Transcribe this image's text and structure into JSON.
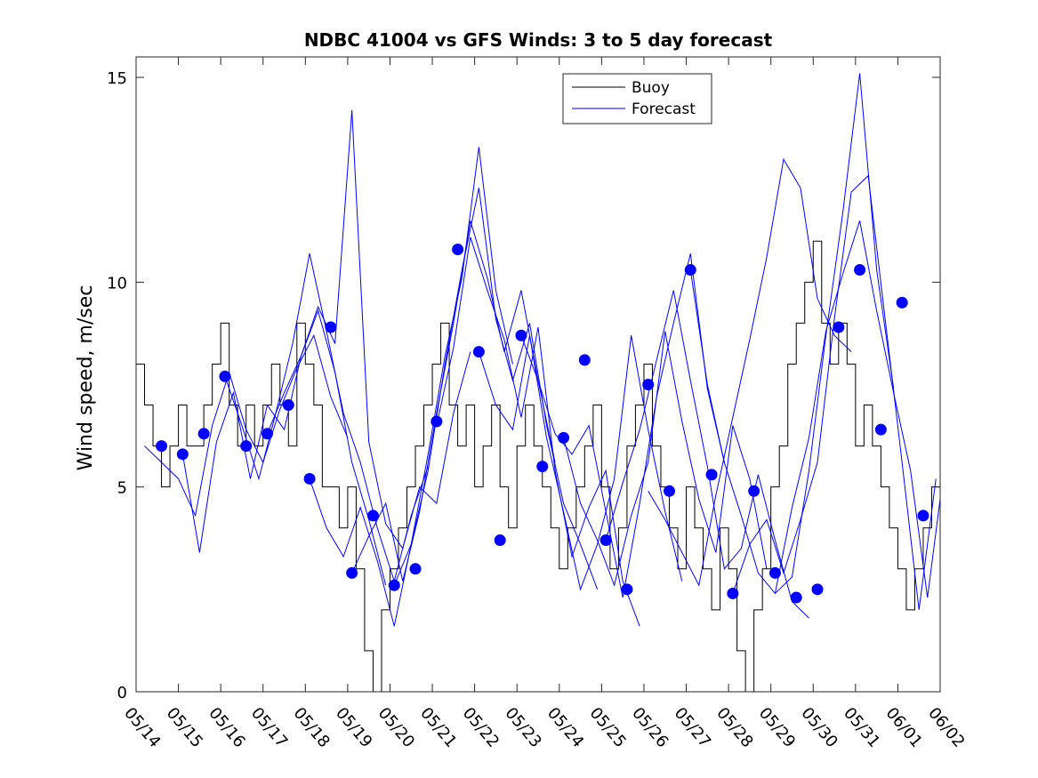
{
  "chart_data": {
    "type": "line",
    "title": "NDBC 41004 vs GFS Winds: 3 to 5 day forecast",
    "xlabel": "",
    "ylabel": "Wind speed, m/sec",
    "x_tick_labels": [
      "05/14",
      "05/15",
      "05/16",
      "05/17",
      "05/18",
      "05/19",
      "05/20",
      "05/21",
      "05/22",
      "05/23",
      "05/24",
      "05/25",
      "05/26",
      "05/27",
      "05/28",
      "05/29",
      "05/30",
      "05/31",
      "06/01",
      "06/02"
    ],
    "y_ticks": [
      0,
      5,
      10,
      15
    ],
    "ylim": [
      0,
      15.5
    ],
    "xlim_days": [
      0,
      19
    ],
    "grid": false,
    "legend_position": "top-center",
    "colors": {
      "buoy": "#000000",
      "forecast": "#0000ff"
    },
    "series": [
      {
        "name": "Buoy",
        "style": "stepped line",
        "x": [
          0,
          0.2,
          0.4,
          0.6,
          0.8,
          1.0,
          1.2,
          1.4,
          1.6,
          1.8,
          2.0,
          2.2,
          2.4,
          2.6,
          2.8,
          3.0,
          3.2,
          3.4,
          3.6,
          3.8,
          4.0,
          4.2,
          4.4,
          4.6,
          4.8,
          5.0,
          5.2,
          5.4,
          5.6,
          5.8,
          6.0,
          6.2,
          6.4,
          6.6,
          6.8,
          7.0,
          7.2,
          7.4,
          7.6,
          7.8,
          8.0,
          8.2,
          8.4,
          8.6,
          8.8,
          9.0,
          9.2,
          9.4,
          9.6,
          9.8,
          10.0,
          10.2,
          10.4,
          10.6,
          10.8,
          11.0,
          11.2,
          11.4,
          11.6,
          11.8,
          12.0,
          12.2,
          12.4,
          12.6,
          12.8,
          13.0,
          13.2,
          13.4,
          13.6,
          13.8,
          14.0,
          14.2,
          14.4,
          14.6,
          14.8,
          15.0,
          15.2,
          15.4,
          15.6,
          15.8,
          16.0,
          16.2,
          16.4,
          16.6,
          16.8,
          17.0,
          17.2,
          17.4,
          17.6,
          17.8,
          18.0,
          18.2,
          18.4,
          18.6,
          18.8,
          19.0
        ],
        "values": [
          8,
          7,
          6,
          5,
          6,
          7,
          6,
          6,
          7,
          8,
          9,
          7,
          6,
          7,
          6,
          7,
          8,
          7,
          6,
          9,
          8,
          7,
          5,
          5,
          4,
          5,
          3,
          1,
          0,
          2,
          3,
          4,
          5,
          6,
          7,
          8,
          9,
          7,
          6,
          7,
          5,
          6,
          7,
          5,
          4,
          6,
          7,
          6,
          5,
          4,
          3,
          4,
          5,
          6,
          7,
          5,
          3,
          4,
          6,
          7,
          8,
          6,
          5,
          4,
          3,
          5,
          4,
          3,
          2,
          4,
          3,
          1,
          0,
          2,
          3,
          5,
          6,
          8,
          9,
          10,
          11,
          9,
          8,
          9,
          8,
          6,
          7,
          6,
          5,
          4,
          3,
          2,
          3,
          4,
          5,
          4
        ]
      },
      {
        "name": "Forecast",
        "style": "several forecast runs, circles mark run start",
        "runs": [
          {
            "x": [
              0.2,
              0.6,
              1.0,
              1.4,
              1.8,
              2.2,
              2.6,
              3.0,
              3.4,
              3.8,
              4.2,
              4.6,
              5.0
            ],
            "values": [
              6.0,
              5.6,
              5.2,
              4.3,
              6.5,
              7.8,
              6.4,
              5.6,
              6.9,
              7.9,
              8.7,
              7.2,
              6.2
            ]
          },
          {
            "x": [
              1.1,
              1.5,
              1.9,
              2.3,
              2.7,
              3.1,
              3.5,
              3.9,
              4.3,
              4.7,
              5.1,
              5.5,
              5.9
            ],
            "values": [
              5.8,
              3.4,
              6.1,
              7.3,
              5.2,
              7.0,
              6.4,
              8.2,
              9.3,
              7.8,
              5.6,
              4.2,
              2.6
            ]
          },
          {
            "x": [
              2.1,
              2.5,
              2.9,
              3.3,
              3.7,
              4.1,
              4.5,
              4.9,
              5.3,
              5.7,
              6.1,
              6.5,
              6.9
            ],
            "values": [
              7.7,
              6.5,
              5.2,
              6.8,
              8.5,
              10.7,
              8.8,
              6.8,
              5.6,
              4.0,
              2.7,
              4.3,
              5.5
            ]
          },
          {
            "x": [
              3.1,
              3.5,
              3.9,
              4.3,
              4.7,
              5.1,
              5.5,
              5.9,
              6.3,
              6.7,
              7.1,
              7.5,
              7.9
            ],
            "values": [
              6.3,
              7.3,
              8.2,
              9.4,
              8.5,
              14.2,
              6.1,
              4.1,
              3.5,
              5.0,
              4.6,
              6.8,
              8.3
            ]
          },
          {
            "x": [
              4.1,
              4.5,
              4.9,
              5.3,
              5.7,
              6.1,
              6.5,
              6.9,
              7.3,
              7.7,
              8.1,
              8.5,
              8.9
            ],
            "values": [
              5.2,
              4.0,
              3.3,
              4.5,
              3.2,
              1.6,
              3.6,
              5.8,
              8.2,
              10.1,
              13.3,
              9.8,
              8.0
            ]
          },
          {
            "x": [
              5.1,
              5.5,
              5.9,
              6.3,
              6.7,
              7.1,
              7.5,
              7.9,
              8.3,
              8.7,
              9.1,
              9.5,
              9.9
            ],
            "values": [
              2.9,
              3.8,
              4.6,
              2.7,
              4.4,
              6.8,
              9.0,
              11.5,
              10.1,
              8.3,
              9.8,
              7.6,
              5.6
            ]
          },
          {
            "x": [
              6.1,
              6.5,
              6.9,
              7.3,
              7.7,
              8.1,
              8.5,
              8.9,
              9.3,
              9.7,
              10.1,
              10.5,
              10.9
            ],
            "values": [
              2.6,
              3.6,
              5.4,
              8.0,
              10.3,
              12.3,
              9.1,
              7.6,
              9.0,
              6.5,
              4.6,
              3.6,
              2.5
            ]
          },
          {
            "x": [
              7.1,
              7.5,
              7.9,
              8.3,
              8.7,
              9.1,
              9.5,
              9.9,
              10.3,
              10.7,
              11.1,
              11.5,
              11.9
            ],
            "values": [
              6.5,
              8.4,
              11.1,
              9.8,
              8.6,
              6.7,
              8.9,
              5.4,
              3.3,
              4.5,
              5.4,
              2.7,
              1.6
            ]
          },
          {
            "x": [
              8.1,
              8.5,
              8.9,
              9.3,
              9.7,
              10.1,
              10.5,
              10.9,
              11.3,
              11.7,
              12.1,
              12.5,
              12.9
            ],
            "values": [
              8.3,
              7.0,
              6.4,
              8.7,
              6.2,
              4.4,
              2.5,
              3.6,
              5.2,
              8.7,
              6.4,
              4.4,
              2.7
            ]
          },
          {
            "x": [
              9.1,
              9.5,
              9.9,
              10.3,
              10.7,
              11.1,
              11.5,
              11.9,
              12.3,
              12.7,
              13.1,
              13.5,
              13.9
            ],
            "values": [
              8.7,
              7.6,
              6.3,
              5.8,
              6.5,
              4.4,
              2.3,
              4.6,
              7.2,
              9.0,
              10.7,
              7.4,
              5.6
            ]
          },
          {
            "x": [
              10.1,
              10.5,
              10.9,
              11.3,
              11.7,
              12.1,
              12.5,
              12.9,
              13.3,
              13.7,
              14.1,
              14.5,
              14.9
            ],
            "values": [
              6.2,
              4.6,
              3.7,
              2.6,
              4.3,
              5.6,
              8.8,
              6.6,
              4.7,
              3.4,
              6.5,
              5.2,
              3.0
            ]
          },
          {
            "x": [
              11.1,
              11.5,
              11.9,
              12.3,
              12.7,
              13.1,
              13.5,
              13.9,
              14.3,
              14.7,
              15.1,
              15.5,
              15.9
            ],
            "values": [
              3.7,
              5.1,
              6.4,
              8.1,
              9.8,
              7.6,
              5.5,
              3.0,
              3.5,
              5.3,
              3.7,
              2.2,
              1.8
            ]
          },
          {
            "x": [
              12.1,
              12.5,
              12.9,
              13.3,
              13.7,
              14.1,
              14.5,
              14.9,
              15.3,
              15.7,
              16.1,
              16.5,
              16.9
            ],
            "values": [
              4.9,
              4.2,
              3.4,
              2.6,
              4.8,
              6.7,
              8.6,
              10.6,
              13.0,
              12.3,
              9.6,
              8.7,
              8.3
            ]
          },
          {
            "x": [
              13.1,
              13.5,
              13.9,
              14.3,
              14.7,
              15.1,
              15.5,
              15.9,
              16.3,
              16.7,
              17.1,
              17.5,
              17.9
            ],
            "values": [
              10.3,
              7.5,
              5.6,
              4.3,
              2.9,
              2.4,
              2.8,
              5.4,
              8.7,
              11.7,
              15.1,
              10.3,
              7.4
            ]
          },
          {
            "x": [
              14.1,
              14.5,
              14.9,
              15.3,
              15.7,
              16.1,
              16.5,
              16.9,
              17.3,
              17.7,
              18.1,
              18.5,
              18.9
            ],
            "values": [
              2.4,
              3.6,
              4.2,
              2.9,
              4.2,
              5.6,
              9.1,
              12.2,
              12.6,
              9.1,
              5.6,
              2.0,
              5.2
            ]
          },
          {
            "x": [
              15.1,
              15.5,
              15.9,
              16.3,
              16.7,
              17.1,
              17.5,
              17.9,
              18.3,
              18.7,
              19.0
            ],
            "values": [
              2.4,
              4.5,
              6.2,
              8.8,
              10.2,
              11.5,
              9.3,
              7.3,
              5.4,
              2.3,
              4.7
            ]
          }
        ],
        "markers": {
          "x": [
            0.6,
            1.1,
            1.6,
            2.1,
            2.6,
            3.1,
            3.6,
            4.1,
            4.6,
            5.1,
            5.6,
            6.1,
            6.6,
            7.1,
            7.6,
            8.1,
            8.6,
            9.1,
            9.6,
            10.1,
            10.6,
            11.1,
            11.6,
            12.1,
            12.6,
            13.1,
            13.6,
            14.1,
            14.6,
            15.1,
            15.6,
            16.1,
            16.6,
            17.1,
            17.6,
            18.1,
            18.6
          ],
          "values": [
            6.0,
            5.8,
            6.3,
            7.7,
            6.0,
            6.3,
            7.0,
            5.2,
            8.9,
            2.9,
            4.3,
            2.6,
            3.0,
            6.6,
            10.8,
            8.3,
            3.7,
            8.7,
            5.5,
            6.2,
            8.1,
            3.7,
            2.5,
            7.5,
            4.9,
            10.3,
            5.3,
            2.4,
            4.9,
            2.9,
            2.3,
            2.5,
            8.9,
            10.3,
            6.4,
            9.5,
            4.3
          ]
        }
      }
    ]
  }
}
